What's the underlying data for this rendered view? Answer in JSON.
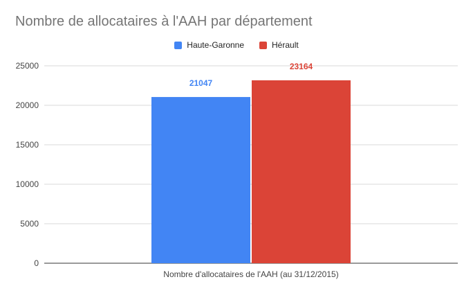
{
  "chart_data": {
    "type": "bar",
    "title": "Nombre de allocataires à l'AAH par département",
    "categories": [
      "Nombre d'allocataires de l'AAH (au 31/12/2015)"
    ],
    "series": [
      {
        "name": "Haute-Garonne",
        "values": [
          21047
        ],
        "color": "#4285f4"
      },
      {
        "name": "Hérault",
        "values": [
          23164
        ],
        "color": "#db4437"
      }
    ],
    "yticks": [
      "0",
      "5000",
      "10000",
      "15000",
      "20000",
      "25000"
    ],
    "ylim": [
      0,
      25000
    ],
    "grid": true,
    "legend_position": "top-center"
  }
}
